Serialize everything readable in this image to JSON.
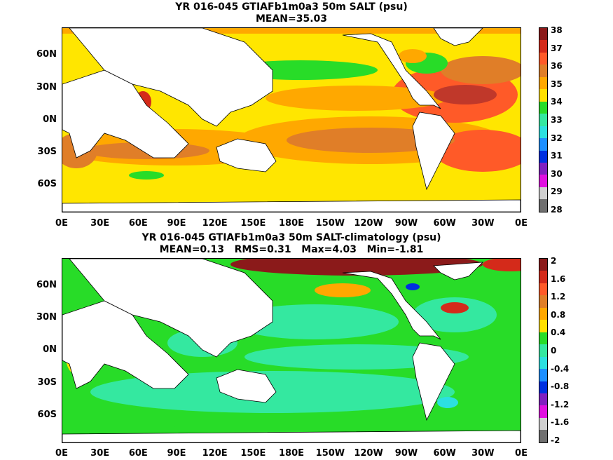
{
  "panels": [
    {
      "title_line1": "YR 016-045 GTIAFb1m0a3 50m SALT (psu)",
      "title_line2": "MEAN=35.03",
      "lat_labels": [
        "60N",
        "30N",
        "0N",
        "30S",
        "60S"
      ],
      "lon_labels": [
        "0E",
        "30E",
        "60E",
        "90E",
        "120E",
        "150E",
        "180E",
        "150W",
        "120W",
        "90W",
        "60W",
        "30W",
        "0E"
      ],
      "colorbar": {
        "ticks": [
          "38",
          "37",
          "36",
          "35",
          "34",
          "33",
          "32",
          "31",
          "30",
          "29",
          "28"
        ],
        "colors": [
          "#8b1a1a",
          "#d42a1a",
          "#ff5a28",
          "#e07e28",
          "#ffa800",
          "#ffe000",
          "#28dc28",
          "#34e8a0",
          "#2ce0e0",
          "#1e90ff",
          "#0030e0",
          "#8020c0",
          "#e010e0",
          "#d0d0d0",
          "#707070"
        ]
      }
    },
    {
      "title_line1": "YR 016-045 GTIAFb1m0a3 50m SALT-climatology (psu)",
      "title_line2": "MEAN=0.13   RMS=0.31   Max=4.03   Min=-1.81",
      "lat_labels": [
        "60N",
        "30N",
        "0N",
        "30S",
        "60S"
      ],
      "lon_labels": [
        "0E",
        "30E",
        "60E",
        "90E",
        "120E",
        "150E",
        "180E",
        "150W",
        "120W",
        "90W",
        "60W",
        "30W",
        "0E"
      ],
      "colorbar": {
        "ticks": [
          "2",
          "1.6",
          "1.2",
          "0.8",
          "0.4",
          "0",
          "-0.4",
          "-0.8",
          "-1.2",
          "-1.6",
          "-2"
        ],
        "colors": [
          "#8b1a1a",
          "#d42a1a",
          "#ff5a28",
          "#e07e28",
          "#ffa800",
          "#ffe000",
          "#28dc28",
          "#34e8a0",
          "#2ce0e0",
          "#1e90ff",
          "#0030e0",
          "#8020c0",
          "#e010e0",
          "#d0d0d0",
          "#707070"
        ]
      }
    }
  ]
}
